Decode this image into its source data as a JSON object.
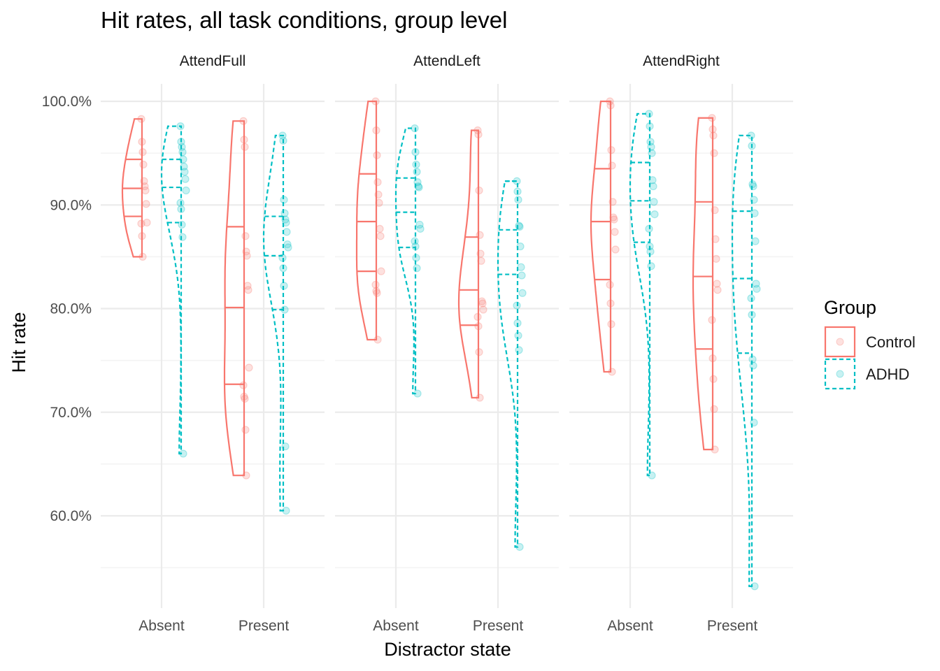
{
  "chart_data": {
    "type": "violin",
    "title": "Hit rates, all task conditions, group level",
    "xlabel": "Distractor state",
    "ylabel": "Hit rate",
    "ylim": [
      0.52,
      1.02
    ],
    "y_ticks": [
      0.6,
      0.7,
      0.8,
      0.9,
      1.0
    ],
    "y_tick_labels": [
      "60.0%",
      "70.0%",
      "80.0%",
      "90.0%",
      "100.0%"
    ],
    "categories": [
      "Absent",
      "Present"
    ],
    "legend": {
      "title": "Group",
      "position": "right",
      "entries": [
        {
          "name": "Control",
          "color": "#F8766D",
          "linetype": "solid"
        },
        {
          "name": "ADHD",
          "color": "#00BFC4",
          "linetype": "dashed"
        }
      ]
    },
    "grid": true,
    "panels": [
      {
        "name": "AttendFull",
        "groups": [
          {
            "category": "Absent",
            "series": "Control",
            "min": 0.85,
            "max": 0.983,
            "quantiles": [
              0.889,
              0.916,
              0.944
            ],
            "points": [
              0.983,
              0.961,
              0.951,
              0.939,
              0.923,
              0.918,
              0.914,
              0.901,
              0.883,
              0.882,
              0.87,
              0.85
            ]
          },
          {
            "category": "Absent",
            "series": "ADHD",
            "min": 0.66,
            "max": 0.976,
            "quantiles": [
              0.883,
              0.917,
              0.944
            ],
            "points": [
              0.976,
              0.961,
              0.956,
              0.951,
              0.944,
              0.937,
              0.932,
              0.925,
              0.914,
              0.902,
              0.896,
              0.881,
              0.869,
              0.66
            ]
          },
          {
            "category": "Present",
            "series": "Control",
            "min": 0.639,
            "max": 0.981,
            "quantiles": [
              0.727,
              0.801,
              0.879
            ],
            "points": [
              0.981,
              0.963,
              0.956,
              0.87,
              0.855,
              0.851,
              0.822,
              0.818,
              0.743,
              0.726,
              0.715,
              0.713,
              0.683,
              0.639
            ]
          },
          {
            "category": "Present",
            "series": "ADHD",
            "min": 0.605,
            "max": 0.967,
            "quantiles": [
              0.799,
              0.851,
              0.889
            ],
            "points": [
              0.967,
              0.962,
              0.905,
              0.892,
              0.886,
              0.883,
              0.874,
              0.862,
              0.859,
              0.849,
              0.839,
              0.822,
              0.799,
              0.667,
              0.605
            ]
          }
        ]
      },
      {
        "name": "AttendLeft",
        "groups": [
          {
            "category": "Absent",
            "series": "Control",
            "min": 0.77,
            "max": 1.0,
            "quantiles": [
              0.836,
              0.884,
              0.93
            ],
            "points": [
              1.0,
              0.972,
              0.948,
              0.922,
              0.91,
              0.902,
              0.877,
              0.87,
              0.836,
              0.823,
              0.817,
              0.815,
              0.77
            ]
          },
          {
            "category": "Absent",
            "series": "ADHD",
            "min": 0.718,
            "max": 0.974,
            "quantiles": [
              0.859,
              0.893,
              0.926
            ],
            "points": [
              0.974,
              0.951,
              0.939,
              0.932,
              0.922,
              0.918,
              0.917,
              0.881,
              0.877,
              0.865,
              0.86,
              0.849,
              0.839,
              0.718
            ]
          },
          {
            "category": "Present",
            "series": "Control",
            "min": 0.714,
            "max": 0.972,
            "quantiles": [
              0.784,
              0.818,
              0.869
            ],
            "points": [
              0.972,
              0.968,
              0.914,
              0.871,
              0.853,
              0.846,
              0.807,
              0.805,
              0.799,
              0.792,
              0.783,
              0.758,
              0.714
            ]
          },
          {
            "category": "Present",
            "series": "ADHD",
            "min": 0.57,
            "max": 0.923,
            "quantiles": [
              0.833,
              0.876,
              0.923
            ],
            "points": [
              0.923,
              0.913,
              0.905,
              0.88,
              0.879,
              0.86,
              0.84,
              0.832,
              0.815,
              0.803,
              0.786,
              0.774,
              0.76,
              0.57
            ]
          }
        ]
      },
      {
        "name": "AttendRight",
        "groups": [
          {
            "category": "Absent",
            "series": "Control",
            "min": 0.739,
            "max": 1.0,
            "quantiles": [
              0.828,
              0.884,
              0.935
            ],
            "points": [
              1.0,
              0.996,
              0.953,
              0.938,
              0.903,
              0.888,
              0.886,
              0.874,
              0.857,
              0.823,
              0.805,
              0.785,
              0.739
            ]
          },
          {
            "category": "Absent",
            "series": "ADHD",
            "min": 0.639,
            "max": 0.988,
            "quantiles": [
              0.864,
              0.904,
              0.941
            ],
            "points": [
              0.988,
              0.976,
              0.961,
              0.956,
              0.95,
              0.924,
              0.918,
              0.903,
              0.891,
              0.877,
              0.86,
              0.855,
              0.841,
              0.639
            ]
          },
          {
            "category": "Present",
            "series": "Control",
            "min": 0.664,
            "max": 0.984,
            "quantiles": [
              0.761,
              0.831,
              0.903
            ],
            "points": [
              0.984,
              0.973,
              0.967,
              0.95,
              0.895,
              0.867,
              0.848,
              0.824,
              0.818,
              0.789,
              0.752,
              0.732,
              0.703,
              0.664
            ]
          },
          {
            "category": "Present",
            "series": "ADHD",
            "min": 0.532,
            "max": 0.967,
            "quantiles": [
              0.757,
              0.829,
              0.894
            ],
            "points": [
              0.967,
              0.957,
              0.92,
              0.918,
              0.905,
              0.892,
              0.865,
              0.824,
              0.819,
              0.81,
              0.794,
              0.751,
              0.745,
              0.69,
              0.532
            ]
          }
        ]
      }
    ]
  }
}
